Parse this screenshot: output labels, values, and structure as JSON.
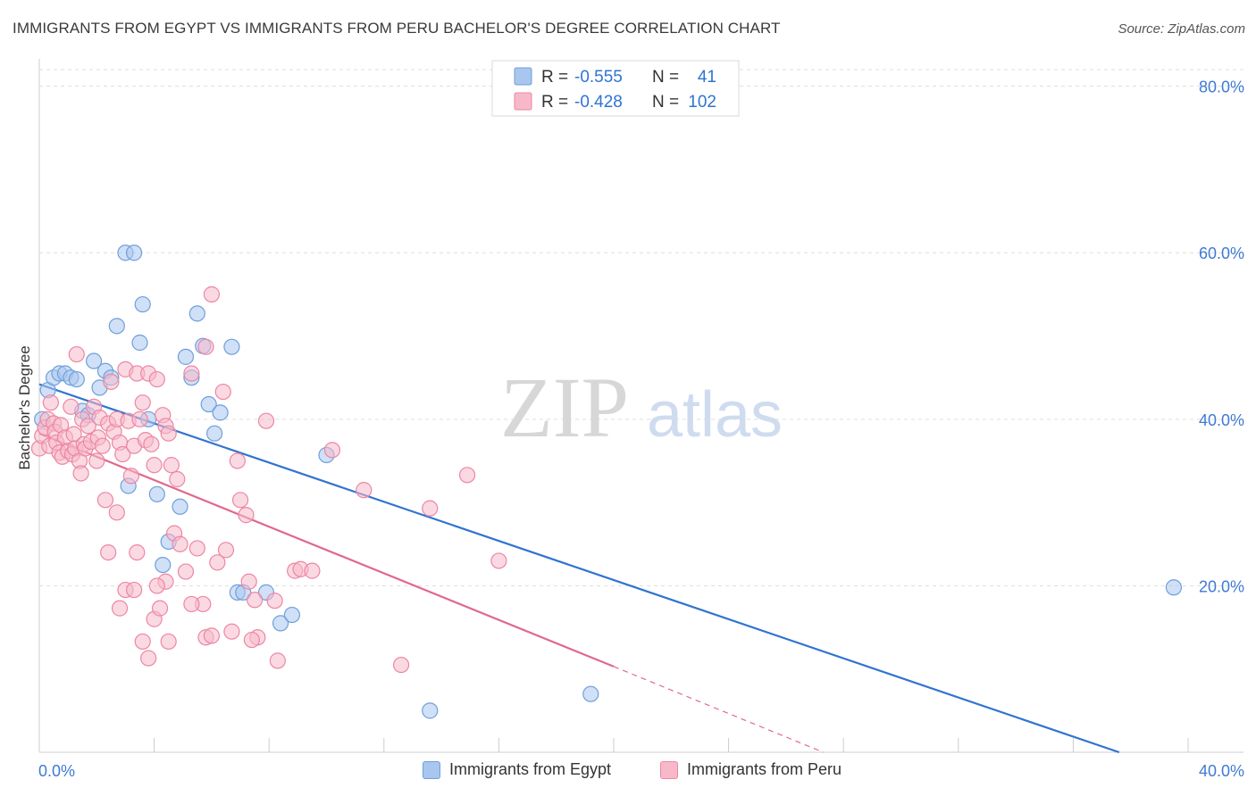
{
  "header": {
    "title": "IMMIGRANTS FROM EGYPT VS IMMIGRANTS FROM PERU BACHELOR'S DEGREE CORRELATION CHART",
    "source": "Source: ZipAtlas.com"
  },
  "watermark": {
    "zip": "ZIP",
    "atlas": "atlas"
  },
  "legend": {
    "r_label": "R =",
    "n_label": "N =",
    "rows": [
      {
        "name": "Immigrants from Egypt",
        "r": "-0.555",
        "n": "41",
        "fill": "#a9c6ee",
        "stroke": "#6f9fdc"
      },
      {
        "name": "Immigrants from Peru",
        "r": "-0.428",
        "n": "102",
        "fill": "#f7b9ca",
        "stroke": "#ec86a4"
      }
    ]
  },
  "chart_data": {
    "type": "scatter",
    "title": "IMMIGRANTS FROM EGYPT VS IMMIGRANTS FROM PERU BACHELOR'S DEGREE CORRELATION CHART",
    "xlabel": "",
    "ylabel": "Bachelor's Degree",
    "xlim": [
      0,
      40
    ],
    "ylim": [
      0,
      82
    ],
    "x_tick_labels": [
      "0.0%",
      "40.0%"
    ],
    "y_ticks": [
      20,
      40,
      60,
      80
    ],
    "y_tick_labels": [
      "20.0%",
      "40.0%",
      "60.0%",
      "80.0%"
    ],
    "grid": true,
    "legend_position": "top-center",
    "series": [
      {
        "name": "Immigrants from Egypt",
        "color": "#6f9fdc",
        "fill": "#a9c6ee",
        "line_color": "#2f74d0",
        "r": -0.555,
        "n": 41,
        "trend": {
          "x0": 0,
          "y0": 44.2,
          "x1": 37.6,
          "y1": 0
        },
        "points": [
          [
            0.3,
            43.5
          ],
          [
            0.5,
            45.0
          ],
          [
            0.7,
            45.5
          ],
          [
            0.9,
            45.5
          ],
          [
            1.1,
            45.0
          ],
          [
            1.3,
            44.8
          ],
          [
            1.5,
            41.0
          ],
          [
            1.7,
            40.5
          ],
          [
            1.9,
            47.0
          ],
          [
            2.1,
            43.8
          ],
          [
            2.3,
            45.8
          ],
          [
            2.5,
            45.0
          ],
          [
            2.7,
            51.2
          ],
          [
            3.0,
            60.0
          ],
          [
            3.3,
            60.0
          ],
          [
            3.5,
            49.2
          ],
          [
            3.6,
            53.8
          ],
          [
            3.8,
            40.0
          ],
          [
            4.1,
            31.0
          ],
          [
            4.3,
            22.5
          ],
          [
            4.5,
            25.3
          ],
          [
            4.9,
            29.5
          ],
          [
            5.1,
            47.5
          ],
          [
            5.3,
            45.0
          ],
          [
            5.5,
            52.7
          ],
          [
            5.7,
            48.8
          ],
          [
            5.9,
            41.8
          ],
          [
            6.1,
            38.3
          ],
          [
            6.3,
            40.8
          ],
          [
            6.7,
            48.7
          ],
          [
            6.9,
            19.2
          ],
          [
            7.1,
            19.2
          ],
          [
            7.9,
            19.2
          ],
          [
            8.4,
            15.5
          ],
          [
            8.8,
            16.5
          ],
          [
            10.0,
            35.7
          ],
          [
            3.1,
            32.0
          ],
          [
            13.6,
            5.0
          ],
          [
            19.2,
            7.0
          ],
          [
            39.5,
            19.8
          ],
          [
            0.1,
            40.0
          ]
        ]
      },
      {
        "name": "Immigrants from Peru",
        "color": "#ec86a4",
        "fill": "#f7b9ca",
        "line_color": "#e0688e",
        "r": -0.428,
        "n": 102,
        "trend": {
          "x0": 0,
          "y0": 38.3,
          "x1": 20.0,
          "y1": 10.3
        },
        "trend_dashed": {
          "x0": 20.0,
          "y0": 10.3,
          "x1": 27.3,
          "y1": 0
        },
        "points": [
          [
            0.0,
            36.5
          ],
          [
            0.1,
            38.0
          ],
          [
            0.2,
            39.0
          ],
          [
            0.3,
            40.0
          ],
          [
            0.35,
            36.8
          ],
          [
            0.4,
            42.0
          ],
          [
            0.5,
            39.5
          ],
          [
            0.55,
            38.5
          ],
          [
            0.6,
            37.2
          ],
          [
            0.7,
            36.0
          ],
          [
            0.75,
            39.3
          ],
          [
            0.8,
            35.5
          ],
          [
            0.9,
            37.8
          ],
          [
            1.0,
            36.2
          ],
          [
            1.1,
            41.5
          ],
          [
            1.15,
            35.8
          ],
          [
            1.2,
            38.2
          ],
          [
            1.25,
            36.5
          ],
          [
            1.3,
            47.8
          ],
          [
            1.4,
            35.0
          ],
          [
            1.45,
            33.5
          ],
          [
            1.5,
            40.0
          ],
          [
            1.55,
            37.0
          ],
          [
            1.6,
            36.5
          ],
          [
            1.7,
            39.2
          ],
          [
            1.8,
            37.3
          ],
          [
            1.9,
            41.5
          ],
          [
            2.0,
            35.0
          ],
          [
            2.05,
            37.8
          ],
          [
            2.1,
            40.2
          ],
          [
            2.2,
            36.8
          ],
          [
            2.3,
            30.3
          ],
          [
            2.4,
            39.5
          ],
          [
            2.5,
            44.5
          ],
          [
            2.6,
            38.5
          ],
          [
            2.7,
            40.0
          ],
          [
            2.8,
            37.2
          ],
          [
            2.9,
            35.8
          ],
          [
            3.0,
            46.0
          ],
          [
            3.1,
            39.8
          ],
          [
            3.2,
            33.2
          ],
          [
            3.3,
            36.8
          ],
          [
            3.4,
            45.5
          ],
          [
            3.5,
            40.0
          ],
          [
            3.6,
            42.0
          ],
          [
            3.7,
            37.5
          ],
          [
            3.8,
            45.5
          ],
          [
            3.9,
            37.0
          ],
          [
            4.0,
            34.5
          ],
          [
            4.1,
            44.8
          ],
          [
            4.3,
            40.5
          ],
          [
            4.4,
            39.2
          ],
          [
            4.5,
            38.3
          ],
          [
            4.6,
            34.5
          ],
          [
            4.7,
            26.3
          ],
          [
            4.8,
            32.8
          ],
          [
            4.9,
            25.0
          ],
          [
            5.1,
            21.7
          ],
          [
            5.3,
            45.5
          ],
          [
            5.5,
            24.5
          ],
          [
            5.7,
            17.8
          ],
          [
            5.8,
            48.7
          ],
          [
            6.0,
            55.0
          ],
          [
            6.2,
            22.8
          ],
          [
            6.4,
            43.3
          ],
          [
            6.5,
            24.3
          ],
          [
            6.7,
            14.5
          ],
          [
            6.9,
            35.0
          ],
          [
            7.0,
            30.3
          ],
          [
            7.2,
            28.5
          ],
          [
            7.3,
            20.5
          ],
          [
            7.5,
            18.3
          ],
          [
            7.6,
            13.8
          ],
          [
            7.9,
            39.8
          ],
          [
            8.2,
            18.2
          ],
          [
            8.3,
            11.0
          ],
          [
            8.9,
            21.8
          ],
          [
            9.1,
            22.0
          ],
          [
            9.5,
            21.8
          ],
          [
            10.2,
            36.3
          ],
          [
            11.3,
            31.5
          ],
          [
            12.6,
            10.5
          ],
          [
            13.6,
            29.3
          ],
          [
            14.9,
            33.3
          ],
          [
            16.0,
            23.0
          ],
          [
            2.4,
            24.0
          ],
          [
            2.7,
            28.8
          ],
          [
            3.0,
            19.5
          ],
          [
            3.3,
            19.5
          ],
          [
            3.4,
            24.0
          ],
          [
            2.8,
            17.3
          ],
          [
            3.6,
            13.3
          ],
          [
            3.8,
            11.3
          ],
          [
            4.0,
            16.0
          ],
          [
            4.2,
            17.3
          ],
          [
            4.4,
            20.5
          ],
          [
            4.5,
            13.3
          ],
          [
            5.3,
            17.8
          ],
          [
            5.8,
            13.8
          ],
          [
            6.0,
            14.0
          ],
          [
            7.4,
            13.5
          ],
          [
            4.1,
            20.0
          ]
        ]
      }
    ]
  }
}
